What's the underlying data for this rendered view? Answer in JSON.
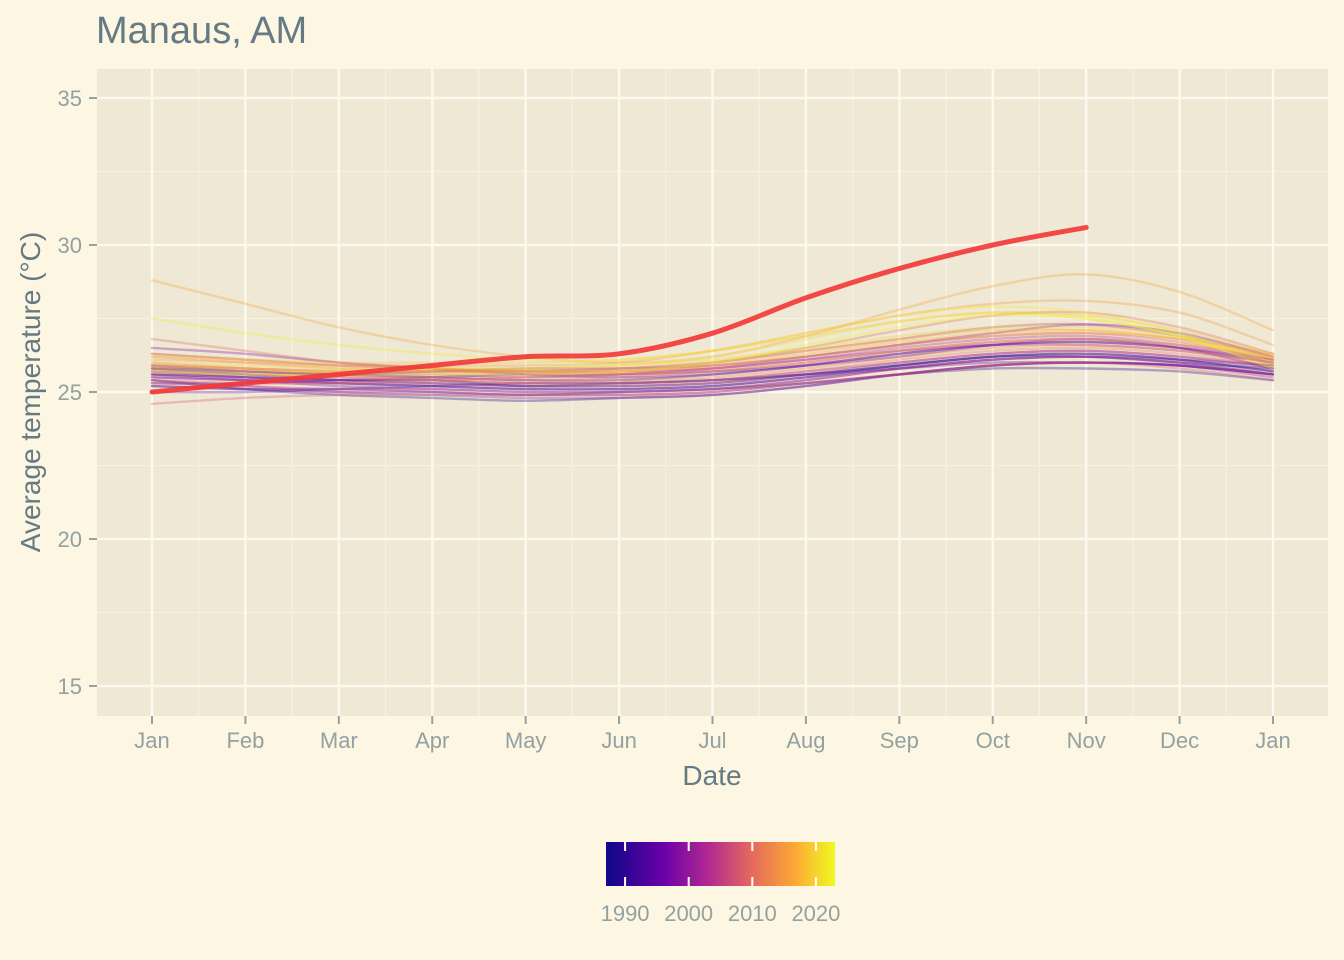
{
  "chart_data": {
    "type": "line",
    "title": "Manaus, AM",
    "xlabel": "Date",
    "ylabel": "Average temperature (°C)",
    "x_ticks": [
      "Jan",
      "Feb",
      "Mar",
      "Apr",
      "May",
      "Jun",
      "Jul",
      "Aug",
      "Sep",
      "Oct",
      "Nov",
      "Dec",
      "Jan"
    ],
    "y_ticks": [
      15,
      20,
      25,
      30,
      35
    ],
    "ylim": [
      14,
      36
    ],
    "grid": true,
    "legend": {
      "type": "colorbar",
      "placement": "bottom",
      "labels": [
        "1990",
        "2000",
        "2010",
        "2020"
      ],
      "range": [
        1987,
        2023
      ],
      "palette": [
        "#0d0887",
        "#6a00a8",
        "#b12a90",
        "#e16462",
        "#fca636",
        "#f0f921"
      ]
    },
    "colors": {
      "background": "#fdf6e3",
      "panel": "#eee8d5",
      "highlight": "#f23636"
    },
    "highlight_series": {
      "month": [
        1,
        2,
        3,
        4,
        5,
        6,
        7,
        8,
        9,
        10,
        11
      ],
      "temp": [
        25.0,
        25.3,
        25.6,
        25.9,
        26.2,
        26.3,
        27.0,
        28.2,
        29.2,
        30.0,
        30.6
      ]
    },
    "series": [
      {
        "year": 1987,
        "temp": [
          25.8,
          25.6,
          25.4,
          25.4,
          25.2,
          25.3,
          25.4,
          25.6,
          25.9,
          26.2,
          26.2,
          26.0,
          25.8
        ]
      },
      {
        "year": 1988,
        "temp": [
          25.4,
          25.1,
          24.9,
          24.8,
          24.7,
          24.8,
          24.9,
          25.2,
          25.6,
          25.9,
          26.0,
          25.9,
          25.6
        ]
      },
      {
        "year": 1989,
        "temp": [
          25.2,
          25.1,
          25.1,
          25.0,
          24.9,
          25.0,
          25.1,
          25.3,
          25.6,
          25.8,
          25.8,
          25.7,
          25.4
        ]
      },
      {
        "year": 1990,
        "temp": [
          25.6,
          25.5,
          25.4,
          25.3,
          25.2,
          25.2,
          25.3,
          25.6,
          25.9,
          26.2,
          26.3,
          26.1,
          25.7
        ]
      },
      {
        "year": 1991,
        "temp": [
          25.9,
          25.7,
          25.6,
          25.5,
          25.4,
          25.4,
          25.6,
          25.9,
          26.3,
          26.6,
          26.7,
          26.5,
          26.0
        ]
      },
      {
        "year": 1992,
        "temp": [
          25.5,
          25.4,
          25.3,
          25.2,
          25.1,
          25.1,
          25.2,
          25.5,
          25.9,
          26.2,
          26.3,
          26.1,
          25.7
        ]
      },
      {
        "year": 1993,
        "temp": [
          25.0,
          25.0,
          25.1,
          25.2,
          25.3,
          25.3,
          25.4,
          25.6,
          25.8,
          26.0,
          26.0,
          25.9,
          25.6
        ]
      },
      {
        "year": 1994,
        "temp": [
          25.7,
          25.5,
          25.3,
          25.2,
          25.1,
          25.1,
          25.2,
          25.5,
          25.8,
          26.1,
          26.2,
          26.1,
          25.9
        ]
      },
      {
        "year": 1995,
        "temp": [
          25.3,
          25.3,
          25.4,
          25.5,
          25.6,
          25.6,
          25.7,
          25.9,
          26.2,
          26.6,
          26.8,
          26.5,
          25.8
        ]
      },
      {
        "year": 1996,
        "temp": [
          25.6,
          25.4,
          25.2,
          25.1,
          25.0,
          25.0,
          25.1,
          25.4,
          25.8,
          26.1,
          26.2,
          26.0,
          25.6
        ]
      },
      {
        "year": 1997,
        "temp": [
          25.8,
          25.7,
          25.6,
          25.7,
          25.8,
          25.8,
          25.9,
          26.2,
          26.6,
          27.0,
          27.3,
          27.0,
          26.2
        ]
      },
      {
        "year": 1998,
        "temp": [
          26.5,
          26.3,
          26.0,
          25.8,
          25.6,
          25.5,
          25.6,
          25.9,
          26.3,
          26.6,
          26.7,
          26.5,
          26.1
        ]
      },
      {
        "year": 1999,
        "temp": [
          25.2,
          25.1,
          25.0,
          25.0,
          24.9,
          24.9,
          25.0,
          25.3,
          25.6,
          25.9,
          26.0,
          25.9,
          25.6
        ]
      },
      {
        "year": 2000,
        "temp": [
          25.4,
          25.2,
          25.0,
          24.9,
          24.8,
          24.8,
          24.9,
          25.2,
          25.6,
          25.9,
          26.0,
          25.9,
          25.5
        ]
      },
      {
        "year": 2001,
        "temp": [
          25.6,
          25.5,
          25.4,
          25.4,
          25.3,
          25.3,
          25.4,
          25.7,
          26.0,
          26.3,
          26.4,
          26.2,
          25.9
        ]
      },
      {
        "year": 2002,
        "temp": [
          25.8,
          25.7,
          25.6,
          25.6,
          25.5,
          25.6,
          25.8,
          26.1,
          26.4,
          26.6,
          26.6,
          26.4,
          26.0
        ]
      },
      {
        "year": 2003,
        "temp": [
          26.3,
          26.1,
          25.9,
          25.8,
          25.7,
          25.7,
          25.8,
          26.1,
          26.5,
          26.8,
          26.9,
          26.6,
          26.1
        ]
      },
      {
        "year": 2004,
        "temp": [
          25.5,
          25.4,
          25.3,
          25.3,
          25.2,
          25.2,
          25.3,
          25.6,
          26.0,
          26.3,
          26.4,
          26.2,
          25.8
        ]
      },
      {
        "year": 2005,
        "temp": [
          25.9,
          25.8,
          25.7,
          25.7,
          25.7,
          25.8,
          26.0,
          26.4,
          26.8,
          27.2,
          27.3,
          26.9,
          26.2
        ]
      },
      {
        "year": 2006,
        "temp": [
          25.3,
          25.2,
          25.1,
          25.1,
          25.0,
          25.0,
          25.1,
          25.4,
          25.8,
          26.1,
          26.2,
          26.0,
          25.6
        ]
      },
      {
        "year": 2007,
        "temp": [
          25.7,
          25.6,
          25.5,
          25.5,
          25.4,
          25.5,
          25.7,
          26.0,
          26.4,
          26.7,
          26.8,
          26.5,
          26.0
        ]
      },
      {
        "year": 2008,
        "temp": [
          24.6,
          24.8,
          24.9,
          24.9,
          24.9,
          24.9,
          25.0,
          25.3,
          25.6,
          25.9,
          26.0,
          25.8,
          25.4
        ]
      },
      {
        "year": 2009,
        "temp": [
          25.4,
          25.3,
          25.3,
          25.4,
          25.5,
          25.6,
          25.8,
          26.2,
          26.6,
          26.9,
          27.0,
          26.7,
          26.1
        ]
      },
      {
        "year": 2010,
        "temp": [
          26.8,
          26.4,
          26.0,
          25.8,
          25.7,
          25.7,
          26.0,
          26.5,
          27.1,
          27.6,
          27.7,
          27.2,
          26.3
        ]
      },
      {
        "year": 2011,
        "temp": [
          25.7,
          25.6,
          25.5,
          25.4,
          25.3,
          25.3,
          25.4,
          25.7,
          26.1,
          26.4,
          26.5,
          26.3,
          25.9
        ]
      },
      {
        "year": 2012,
        "temp": [
          26.0,
          25.8,
          25.6,
          25.5,
          25.4,
          25.4,
          25.5,
          25.8,
          26.2,
          26.5,
          26.6,
          26.4,
          26.0
        ]
      },
      {
        "year": 2013,
        "temp": [
          26.2,
          26.0,
          25.8,
          25.7,
          25.6,
          25.6,
          25.7,
          26.0,
          26.4,
          26.7,
          26.8,
          26.6,
          26.2
        ]
      },
      {
        "year": 2014,
        "temp": [
          25.9,
          25.8,
          25.7,
          25.7,
          25.7,
          25.7,
          25.9,
          26.2,
          26.6,
          26.9,
          27.0,
          26.8,
          26.3
        ]
      },
      {
        "year": 2015,
        "temp": [
          26.1,
          26.0,
          25.9,
          25.9,
          25.9,
          26.0,
          26.4,
          27.0,
          27.6,
          28.0,
          28.1,
          27.7,
          26.6
        ]
      },
      {
        "year": 2016,
        "temp": [
          28.8,
          28.0,
          27.2,
          26.6,
          26.2,
          26.0,
          26.2,
          26.9,
          27.8,
          28.6,
          29.0,
          28.4,
          27.1
        ]
      },
      {
        "year": 2017,
        "temp": [
          26.3,
          26.1,
          25.9,
          25.8,
          25.7,
          25.7,
          25.9,
          26.3,
          26.7,
          27.0,
          27.1,
          26.8,
          26.2
        ]
      },
      {
        "year": 2018,
        "temp": [
          25.9,
          25.8,
          25.7,
          25.7,
          25.7,
          25.8,
          26.0,
          26.4,
          26.8,
          27.1,
          27.1,
          26.8,
          26.1
        ]
      },
      {
        "year": 2019,
        "temp": [
          26.2,
          26.1,
          26.0,
          26.0,
          26.0,
          26.1,
          26.4,
          26.9,
          27.4,
          27.7,
          27.6,
          27.1,
          26.3
        ]
      },
      {
        "year": 2020,
        "temp": [
          26.0,
          25.9,
          25.8,
          25.8,
          25.8,
          25.9,
          26.1,
          26.5,
          26.9,
          27.2,
          27.2,
          26.9,
          26.2
        ]
      },
      {
        "year": 2021,
        "temp": [
          25.8,
          25.7,
          25.7,
          25.8,
          25.8,
          25.9,
          26.2,
          26.8,
          27.4,
          27.7,
          27.5,
          26.9,
          25.9
        ]
      },
      {
        "year": 2022,
        "temp": [
          27.5,
          27.0,
          26.6,
          26.3,
          26.1,
          26.1,
          26.4,
          27.0,
          27.6,
          27.9,
          27.7,
          27.0,
          26.0
        ]
      },
      {
        "year": 2023,
        "temp": [
          25.7,
          25.6,
          25.6,
          25.6,
          25.6,
          25.7,
          26.0,
          26.6,
          27.2,
          27.6,
          27.5,
          26.9,
          25.8
        ]
      }
    ]
  }
}
